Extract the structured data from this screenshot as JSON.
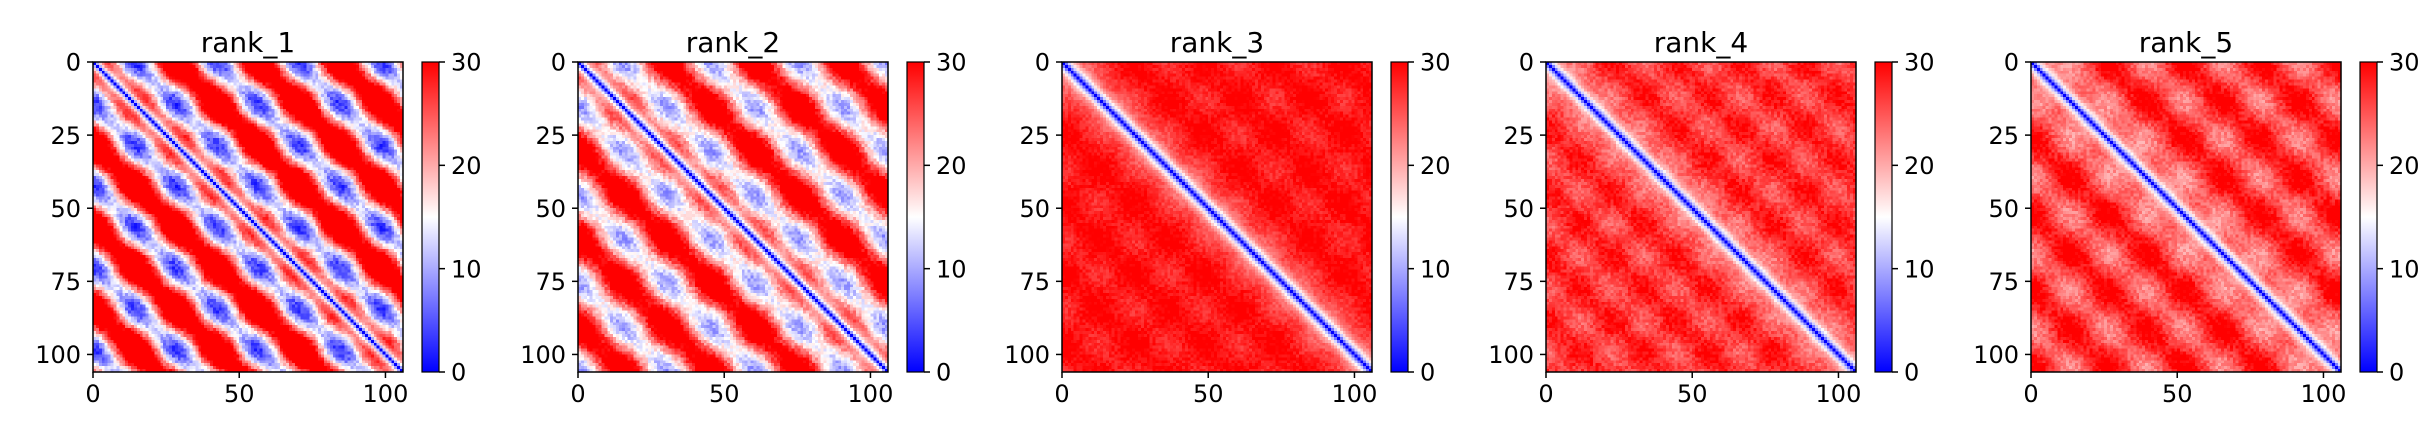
{
  "colormap": {
    "name": "bwr",
    "low_color": "#0000ff",
    "mid_color": "#ffffff",
    "high_color": "#ff0000"
  },
  "chart_data": [
    {
      "type": "heatmap",
      "title": "rank_1",
      "size": 106,
      "x_ticks": [
        0,
        50,
        100
      ],
      "y_ticks": [
        0,
        25,
        50,
        75,
        100
      ],
      "colorbar": {
        "min": 0,
        "max": 30,
        "ticks": [
          0,
          10,
          20,
          30
        ]
      },
      "pattern": {
        "band_width": 2.3,
        "plateau": 23,
        "block_period": 28,
        "block_amp": 9,
        "offdiag_period": 28,
        "offdiag_amp": 11,
        "noise": 2.5,
        "seed": 11
      }
    },
    {
      "type": "heatmap",
      "title": "rank_2",
      "size": 106,
      "x_ticks": [
        0,
        50,
        100
      ],
      "y_ticks": [
        0,
        25,
        50,
        75,
        100
      ],
      "colorbar": {
        "min": 0,
        "max": 30,
        "ticks": [
          0,
          10,
          20,
          30
        ]
      },
      "pattern": {
        "band_width": 2.6,
        "plateau": 23,
        "block_period": 30,
        "block_amp": 6,
        "offdiag_period": 30,
        "offdiag_amp": 8,
        "noise": 2.5,
        "seed": 22
      }
    },
    {
      "type": "heatmap",
      "title": "rank_3",
      "size": 106,
      "x_ticks": [
        0,
        50,
        100
      ],
      "y_ticks": [
        0,
        25,
        50,
        75,
        100
      ],
      "colorbar": {
        "min": 0,
        "max": 30,
        "ticks": [
          0,
          10,
          20,
          30
        ]
      },
      "pattern": {
        "band_width": 3.8,
        "plateau": 29,
        "block_period": 24,
        "block_amp": 1.5,
        "offdiag_period": 24,
        "offdiag_amp": 0.5,
        "noise": 1.5,
        "seed": 33
      }
    },
    {
      "type": "heatmap",
      "title": "rank_4",
      "size": 106,
      "x_ticks": [
        0,
        50,
        100
      ],
      "y_ticks": [
        0,
        25,
        50,
        75,
        100
      ],
      "colorbar": {
        "min": 0,
        "max": 30,
        "ticks": [
          0,
          10,
          20,
          30
        ]
      },
      "pattern": {
        "band_width": 3.4,
        "plateau": 27,
        "block_period": 22,
        "block_amp": 2,
        "offdiag_period": 22,
        "offdiag_amp": 1,
        "noise": 2,
        "seed": 44
      }
    },
    {
      "type": "heatmap",
      "title": "rank_5",
      "size": 106,
      "x_ticks": [
        0,
        50,
        100
      ],
      "y_ticks": [
        0,
        25,
        50,
        75,
        100
      ],
      "colorbar": {
        "min": 0,
        "max": 30,
        "ticks": [
          0,
          10,
          20,
          30
        ]
      },
      "pattern": {
        "band_width": 3.4,
        "plateau": 26.5,
        "block_period": 26,
        "block_amp": 3,
        "offdiag_period": 26,
        "offdiag_amp": 2,
        "noise": 2,
        "seed": 55
      }
    }
  ]
}
